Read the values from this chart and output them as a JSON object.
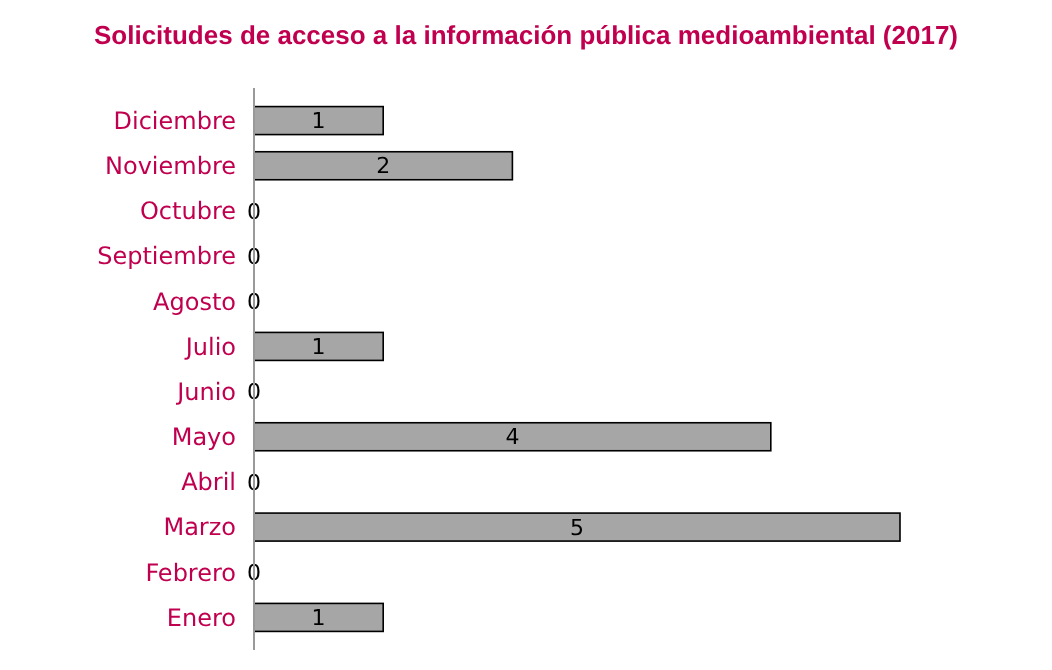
{
  "chart_data": {
    "type": "bar",
    "orientation": "horizontal",
    "title": "Solicitudes de acceso a la información pública medioambiental (2017)",
    "categories": [
      "Diciembre",
      "Noviembre",
      "Octubre",
      "Septiembre",
      "Agosto",
      "Julio",
      "Junio",
      "Mayo",
      "Abril",
      "Marzo",
      "Febrero",
      "Enero"
    ],
    "values": [
      1,
      2,
      0,
      0,
      0,
      1,
      0,
      4,
      0,
      5,
      0,
      1
    ],
    "color": "#a6a6a6",
    "data_labels": true,
    "tick_labels": "y"
  }
}
